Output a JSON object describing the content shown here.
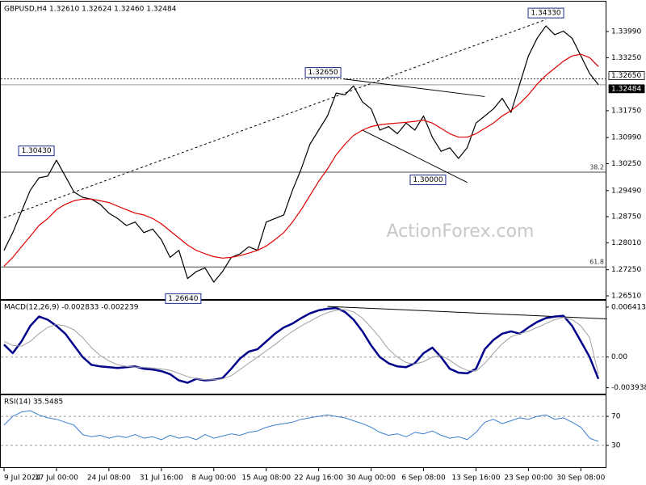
{
  "chart_data": [
    {
      "type": "line",
      "title": "GBPUSD,H4  1.32610 1.32624 1.32460 1.32484",
      "watermark": "ActionForex.com",
      "categories": [
        "9 Jul 2024",
        null,
        null,
        null,
        null,
        null,
        "17 Jul 00:00",
        null,
        null,
        null,
        null,
        null,
        "24 Jul 08:00",
        null,
        null,
        null,
        null,
        null,
        "31 Jul 16:00",
        null,
        null,
        null,
        null,
        null,
        "8 Aug 00:00",
        null,
        null,
        null,
        null,
        null,
        "15 Aug 08:00",
        null,
        null,
        null,
        null,
        null,
        "22 Aug 16:00",
        null,
        null,
        null,
        null,
        null,
        "30 Aug 00:00",
        null,
        null,
        null,
        null,
        null,
        "6 Sep 08:00",
        null,
        null,
        null,
        null,
        null,
        "13 Sep 16:00",
        null,
        null,
        null,
        null,
        null,
        "23 Sep 00:00",
        null,
        null,
        null,
        null,
        null,
        "30 Sep 08:00",
        null,
        null
      ],
      "series": [
        {
          "color": "#000000",
          "width": 1.2,
          "values": [
            1.278,
            1.283,
            1.289,
            1.295,
            1.2985,
            1.299,
            1.3035,
            1.299,
            1.2945,
            1.293,
            1.2925,
            1.291,
            1.2885,
            1.287,
            1.285,
            1.286,
            1.283,
            1.284,
            1.281,
            1.276,
            1.278,
            1.27,
            1.272,
            1.273,
            1.269,
            1.272,
            1.276,
            1.277,
            1.279,
            1.278,
            1.286,
            1.287,
            1.288,
            1.295,
            1.301,
            1.308,
            1.312,
            1.316,
            1.3225,
            1.322,
            1.3245,
            1.32,
            1.318,
            1.312,
            1.313,
            1.311,
            1.314,
            1.312,
            1.316,
            1.31,
            1.306,
            1.307,
            1.304,
            1.307,
            1.314,
            1.316,
            1.318,
            1.321,
            1.317,
            1.325,
            1.333,
            1.338,
            1.3415,
            1.339,
            1.34,
            1.338,
            1.333,
            1.328,
            1.32484
          ]
        },
        {
          "color": "#e00000",
          "width": 1.2,
          "values": [
            1.2735,
            1.276,
            1.279,
            1.282,
            1.285,
            1.287,
            1.2895,
            1.291,
            1.292,
            1.2925,
            1.2925,
            1.292,
            1.2915,
            1.2905,
            1.2895,
            1.2885,
            1.288,
            1.287,
            1.2855,
            1.2835,
            1.2815,
            1.2795,
            1.278,
            1.277,
            1.2762,
            1.2758,
            1.276,
            1.2765,
            1.2772,
            1.278,
            1.2792,
            1.281,
            1.283,
            1.286,
            1.2895,
            1.2935,
            1.2975,
            1.301,
            1.305,
            1.308,
            1.3105,
            1.312,
            1.313,
            1.3135,
            1.3138,
            1.314,
            1.3142,
            1.3145,
            1.3148,
            1.314,
            1.3125,
            1.311,
            1.31,
            1.31,
            1.311,
            1.3125,
            1.314,
            1.316,
            1.3175,
            1.3195,
            1.322,
            1.325,
            1.3275,
            1.3295,
            1.3315,
            1.333,
            1.3335,
            1.3325,
            1.33
          ]
        }
      ],
      "ylim": [
        1.2642,
        1.3479
      ],
      "yticks": [
        {
          "value": 1.2651,
          "label": "1.26510"
        },
        {
          "value": 1.2725,
          "label": "1.27250"
        },
        {
          "value": 1.2801,
          "label": "1.28010"
        },
        {
          "value": 1.2875,
          "label": "1.28750"
        },
        {
          "value": 1.2949,
          "label": "1.29490"
        },
        {
          "value": 1.3025,
          "label": "1.30250"
        },
        {
          "value": 1.3099,
          "label": "1.30990"
        },
        {
          "value": 1.3175,
          "label": "1.31750"
        },
        {
          "value": 1.3325,
          "label": "1.33250"
        },
        {
          "value": 1.3399,
          "label": "1.33990"
        }
      ],
      "levels": [
        {
          "value": 1.3265,
          "label": "1.32650",
          "style": "dotted",
          "label_box": "outline"
        },
        {
          "value": 1.32484,
          "label": "1.32484",
          "style": "solid",
          "label_box": "filled"
        },
        {
          "value": 1.3001,
          "label": "38.2",
          "style": "fib",
          "label_box": "none"
        },
        {
          "value": 1.2733,
          "label": "61.8",
          "style": "fib",
          "label_box": "none"
        }
      ],
      "trendlines": [
        {
          "style": "dashed",
          "points": [
            [
              0,
              1.2872
            ],
            [
              62,
              1.3433
            ]
          ]
        },
        {
          "style": "solid",
          "points": [
            [
              38.8,
              1.3265
            ],
            [
              55,
              1.3215
            ]
          ]
        },
        {
          "style": "solid",
          "points": [
            [
              41,
              1.312
            ],
            [
              53,
              1.2972
            ]
          ]
        }
      ],
      "annotations": [
        {
          "at": 62,
          "value": 1.3433,
          "label": "1.34330",
          "place": "above"
        },
        {
          "at": 36.5,
          "value": 1.3265,
          "label": "1.32650",
          "place": "above"
        },
        {
          "at": 3.7,
          "value": 1.3043,
          "label": "1.30430",
          "place": "above"
        },
        {
          "at": 48.5,
          "value": 1.3,
          "label": "1.30000",
          "place": "below"
        },
        {
          "at": 20.5,
          "value": 1.2664,
          "label": "1.26640",
          "place": "below"
        }
      ]
    },
    {
      "type": "line",
      "title": "MACD(12,26,9) -0.002833 -0.002239",
      "series": [
        {
          "color": "#00008b",
          "width": 2.5,
          "values": [
            0.0016,
            0.0005,
            0.002,
            0.004,
            0.0052,
            0.0048,
            0.004,
            0.003,
            0.0015,
            0.0,
            -0.001,
            -0.0012,
            -0.0013,
            -0.0014,
            -0.0013,
            -0.0012,
            -0.0015,
            -0.0016,
            -0.0018,
            -0.0022,
            -0.003,
            -0.0033,
            -0.0028,
            -0.003,
            -0.0029,
            -0.0027,
            -0.0015,
            -0.0002,
            0.0007,
            0.001,
            0.002,
            0.003,
            0.0038,
            0.0043,
            0.005,
            0.0056,
            0.006,
            0.0062,
            0.0063,
            0.0058,
            0.0048,
            0.0033,
            0.0015,
            0.0,
            -0.0008,
            -0.0012,
            -0.0013,
            -0.0008,
            0.0005,
            0.0012,
            0.0,
            -0.0015,
            -0.002,
            -0.0021,
            -0.0015,
            0.001,
            0.0022,
            0.003,
            0.0033,
            0.003,
            0.0038,
            0.0045,
            0.005,
            0.0052,
            0.0053,
            0.004,
            0.002,
            0.0,
            -0.0028
          ]
        },
        {
          "color": "#a0a0a0",
          "width": 1,
          "values": [
            0.002,
            0.0015,
            0.0014,
            0.002,
            0.003,
            0.0038,
            0.0042,
            0.004,
            0.0035,
            0.0025,
            0.0012,
            0.0002,
            -0.0005,
            -0.001,
            -0.0012,
            -0.0013,
            -0.0013,
            -0.0014,
            -0.0015,
            -0.0017,
            -0.0021,
            -0.0025,
            -0.0028,
            -0.0029,
            -0.0029,
            -0.0028,
            -0.0024,
            -0.0016,
            -0.0008,
            0.0,
            0.0008,
            0.0016,
            0.0025,
            0.0033,
            0.004,
            0.0046,
            0.0052,
            0.0057,
            0.006,
            0.0061,
            0.0058,
            0.005,
            0.0038,
            0.0025,
            0.001,
            0.0,
            -0.0007,
            -0.0009,
            -0.0006,
            0.0,
            0.0002,
            -0.0004,
            -0.0012,
            -0.0017,
            -0.0018,
            -0.0008,
            0.0005,
            0.0017,
            0.0026,
            0.003,
            0.0033,
            0.0038,
            0.0043,
            0.0048,
            0.0051,
            0.0048,
            0.004,
            0.0025,
            -0.0022
          ]
        }
      ],
      "ylim": [
        -0.0047,
        0.00713
      ],
      "yticks": [
        0.006413,
        {
          "value": 0,
          "label": "0.00"
        },
        -0.003938
      ],
      "levels": [
        {
          "value": 0,
          "style": "dashed"
        }
      ],
      "trendlines": [
        {
          "style": "solid",
          "points": [
            [
              37,
              0.0065
            ],
            [
              69,
              0.0049
            ]
          ]
        }
      ]
    },
    {
      "type": "line",
      "title": "RSI(14) 35.5485",
      "series": [
        {
          "color": "#3a7fd0",
          "width": 1,
          "values": [
            58,
            70,
            76,
            78,
            72,
            68,
            66,
            62,
            58,
            45,
            42,
            44,
            40,
            43,
            41,
            45,
            40,
            42,
            38,
            44,
            40,
            42,
            38,
            45,
            40,
            43,
            46,
            44,
            48,
            50,
            55,
            58,
            60,
            62,
            66,
            68,
            70,
            72,
            70,
            68,
            64,
            60,
            55,
            48,
            44,
            46,
            42,
            48,
            46,
            50,
            44,
            40,
            42,
            38,
            48,
            62,
            66,
            60,
            64,
            68,
            66,
            70,
            72,
            66,
            68,
            62,
            55,
            40,
            35.5
          ]
        }
      ],
      "ylim": [
        0,
        98
      ],
      "yticks": [
        70,
        30
      ],
      "levels": [
        {
          "value": 70,
          "style": "dashed"
        },
        {
          "value": 30,
          "style": "dashed"
        }
      ]
    }
  ]
}
